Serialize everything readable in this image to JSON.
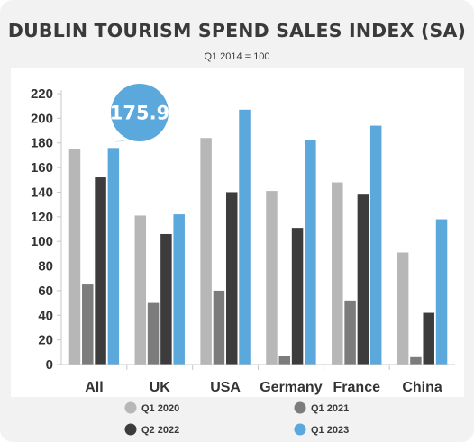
{
  "chart_data": {
    "type": "bar",
    "title": "DUBLIN TOURISM SPEND SALES INDEX (SA)",
    "subtitle": "Q1 2014 = 100",
    "categories": [
      "All",
      "UK",
      "USA",
      "Germany",
      "France",
      "China"
    ],
    "series": [
      {
        "name": "Q1 2020",
        "color": "#b7b7b7",
        "values": [
          175,
          121,
          184,
          141,
          148,
          91
        ]
      },
      {
        "name": "Q1 2021",
        "color": "#7c7c7c",
        "values": [
          65,
          50,
          60,
          7,
          52,
          6
        ]
      },
      {
        "name": "Q2 2022",
        "color": "#3c3c3c",
        "values": [
          152,
          106,
          140,
          111,
          138,
          42
        ]
      },
      {
        "name": "Q1 2023",
        "color": "#5aa8dc",
        "values": [
          175.9,
          122,
          207,
          182,
          194,
          118
        ]
      }
    ],
    "yticks": [
      0,
      20,
      40,
      60,
      80,
      100,
      120,
      140,
      160,
      180,
      200,
      220
    ],
    "ylim": [
      0,
      220
    ],
    "grid": false,
    "legend_position": "bottom",
    "annotation": {
      "label": "175.9",
      "category": "All",
      "series": "Q1 2023",
      "color": "#5aa8dc"
    }
  }
}
